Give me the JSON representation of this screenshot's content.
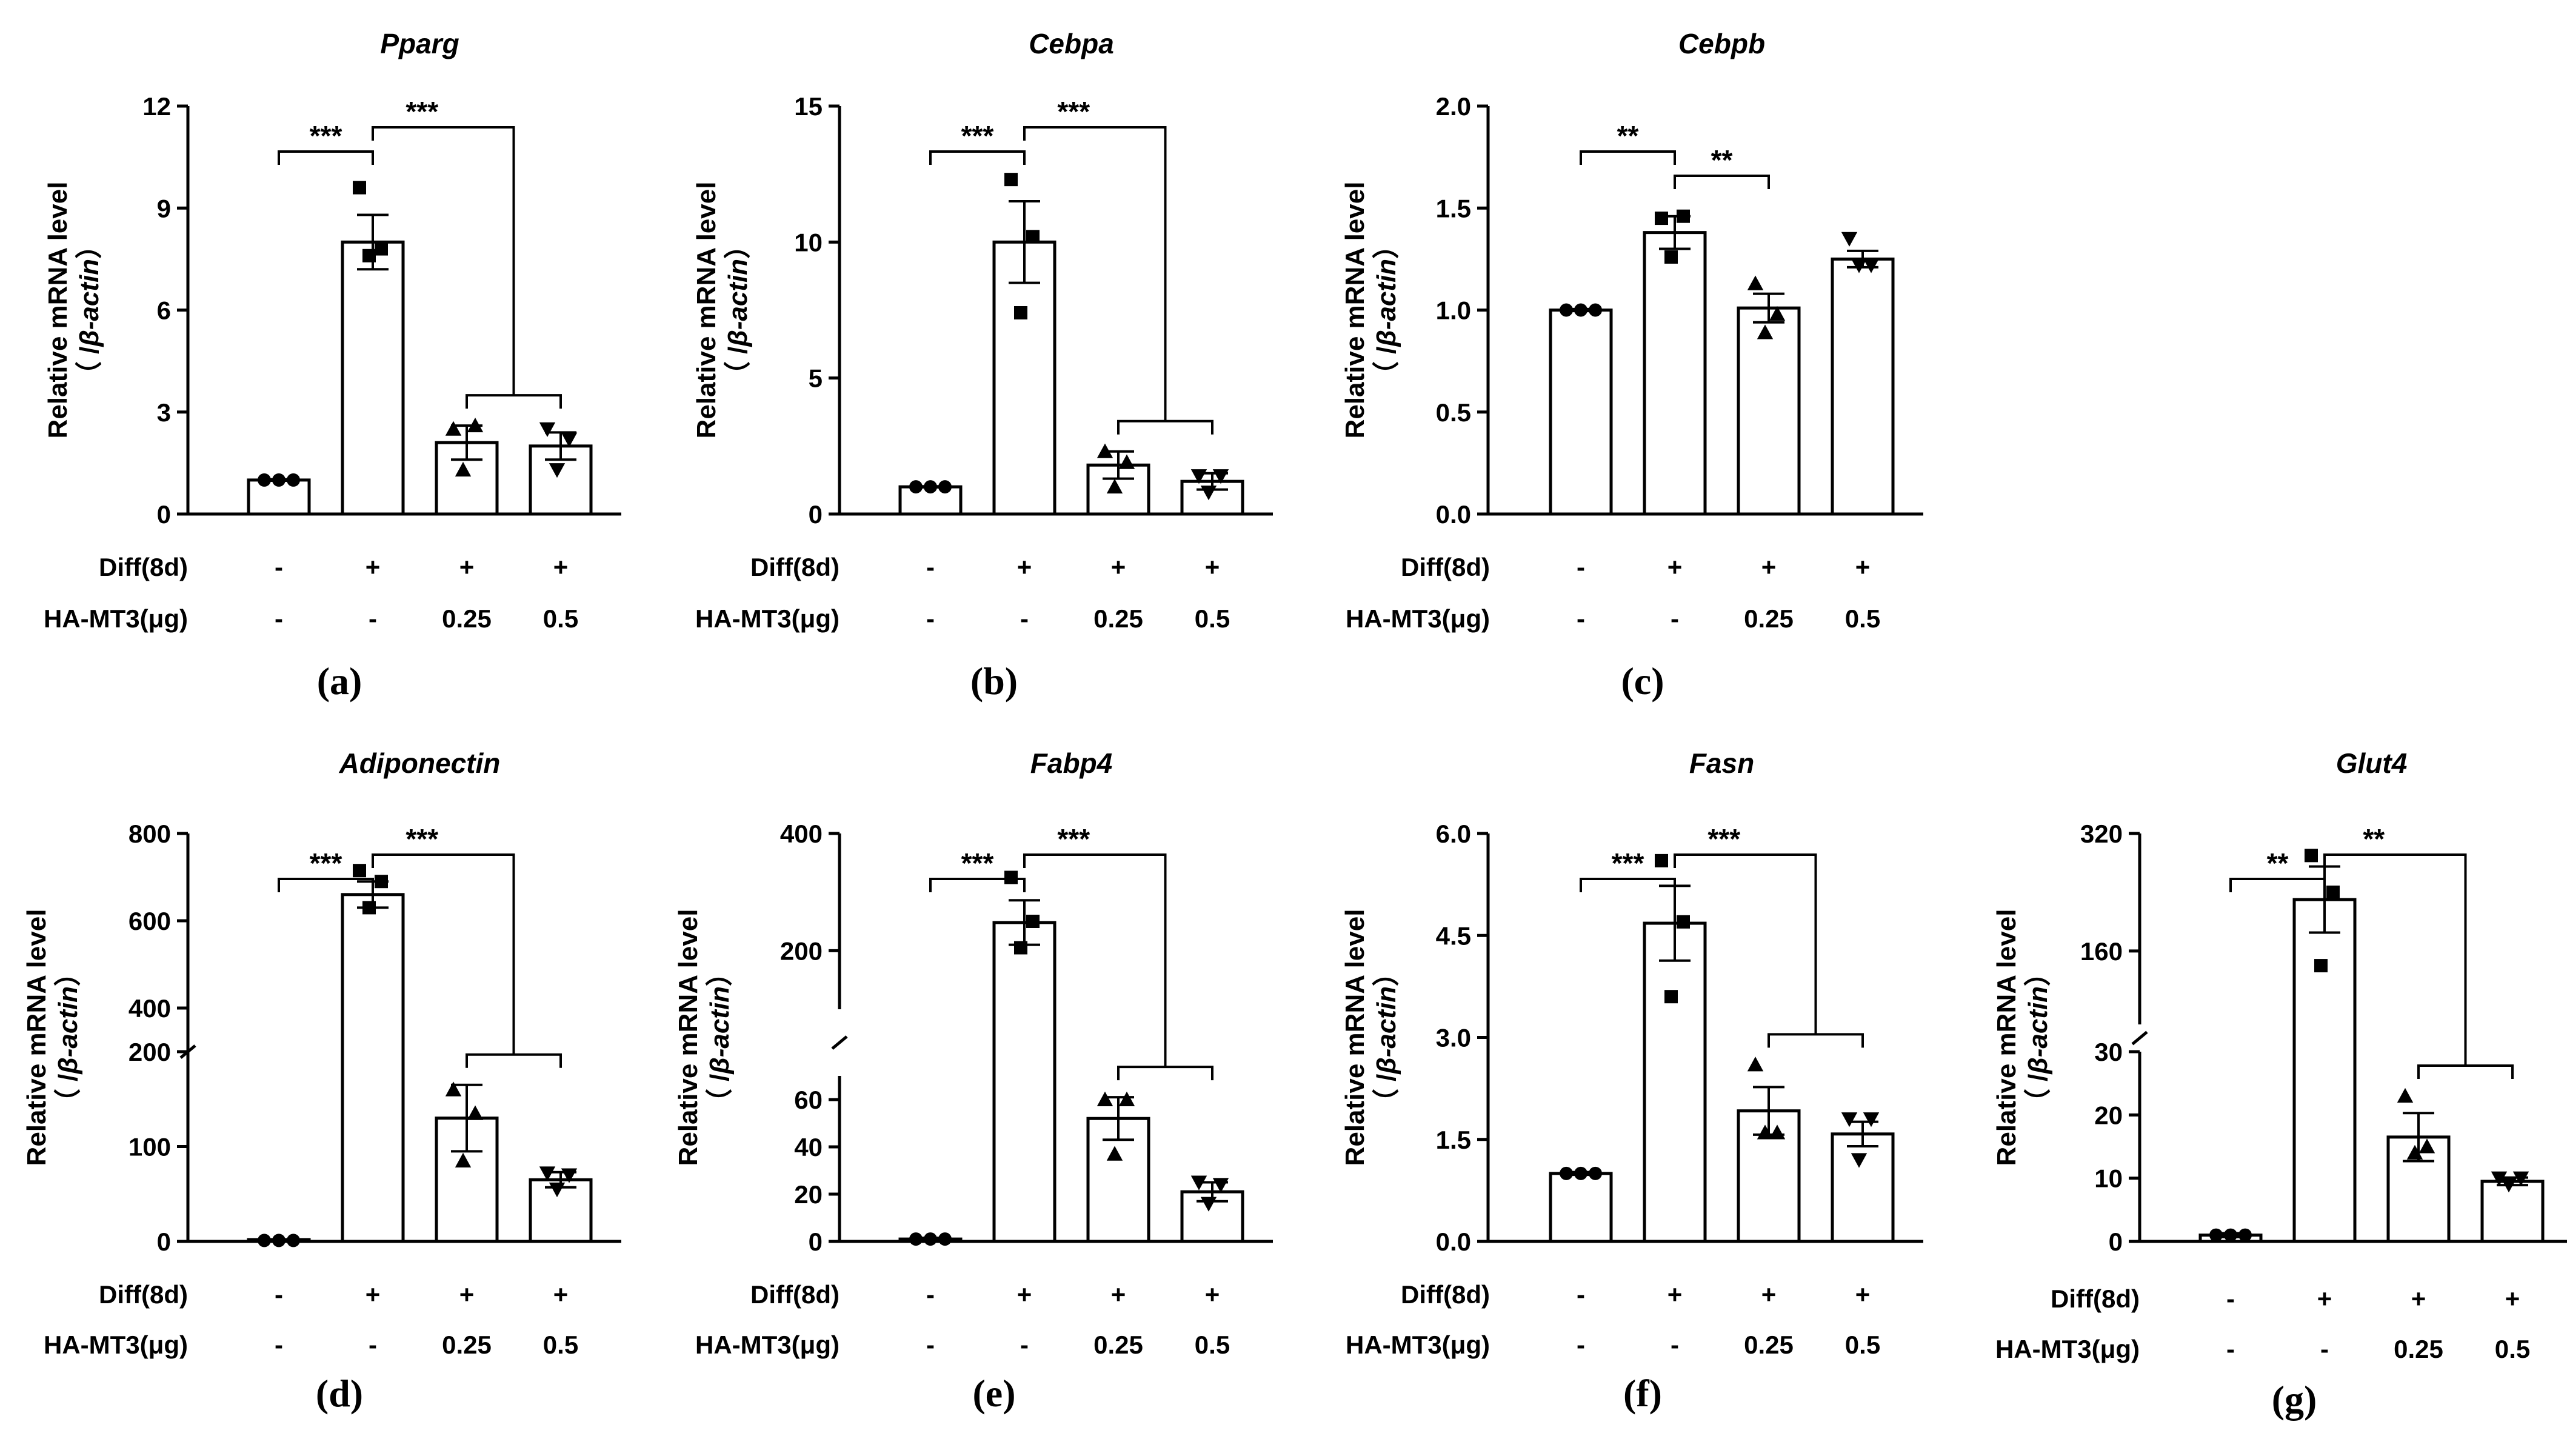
{
  "figure": {
    "ylabel_main": "Relative mRNA level",
    "ylabel_sub_prefix": "（ /",
    "ylabel_sub_gene": "β-actin",
    "ylabel_sub_suffix": "）",
    "row_labels": [
      "Diff(8d)",
      "HA-MT3(μg)"
    ],
    "diff_values": [
      "-",
      "+",
      "+",
      "+"
    ],
    "ha_values": [
      "-",
      "-",
      "0.25",
      "0.5"
    ],
    "colors": {
      "bar_fill": "#ffffff",
      "line": "#000000"
    }
  },
  "chart_data": [
    {
      "type": "bar",
      "panel": "(a)",
      "title": "Pparg",
      "ylim": [
        0,
        12
      ],
      "yticks": [
        "0",
        "3",
        "6",
        "9",
        "12"
      ],
      "categories": [
        "-/-",
        "+/-",
        "+/0.25",
        "+/0.5"
      ],
      "values": [
        1.0,
        8.0,
        2.1,
        2.0
      ],
      "errors": [
        0.02,
        0.8,
        0.5,
        0.4
      ],
      "points": [
        [
          1.0,
          1.0,
          1.0
        ],
        [
          9.6,
          7.8,
          7.6
        ],
        [
          2.5,
          2.6,
          1.3
        ],
        [
          2.5,
          2.2,
          1.3
        ]
      ],
      "markers": [
        "circle",
        "square",
        "triangle",
        "triangle-down"
      ],
      "significance": [
        {
          "label": "***",
          "from": 0,
          "to": 1
        },
        {
          "label": "***",
          "from": 1,
          "to": [
            2,
            3
          ]
        }
      ]
    },
    {
      "type": "bar",
      "panel": "(b)",
      "title": "Cebpa",
      "ylim": [
        0,
        15
      ],
      "yticks": [
        "0",
        "5",
        "10",
        "15"
      ],
      "categories": [
        "-/-",
        "+/-",
        "+/0.25",
        "+/0.5"
      ],
      "values": [
        1.0,
        10.0,
        1.8,
        1.2
      ],
      "errors": [
        0.02,
        1.5,
        0.5,
        0.3
      ],
      "points": [
        [
          1.0,
          1.0,
          1.0
        ],
        [
          12.3,
          10.2,
          7.4
        ],
        [
          2.3,
          1.9,
          1.0
        ],
        [
          1.4,
          1.4,
          0.8
        ]
      ],
      "markers": [
        "circle",
        "square",
        "triangle",
        "triangle-down"
      ],
      "significance": [
        {
          "label": "***",
          "from": 0,
          "to": 1
        },
        {
          "label": "***",
          "from": 1,
          "to": [
            2,
            3
          ]
        }
      ]
    },
    {
      "type": "bar",
      "panel": "(c)",
      "title": "Cebpb",
      "ylim": [
        0,
        2.0
      ],
      "yticks": [
        "0.0",
        "0.5",
        "1.0",
        "1.5",
        "2.0"
      ],
      "categories": [
        "-/-",
        "+/-",
        "+/0.25",
        "+/0.5"
      ],
      "values": [
        1.0,
        1.38,
        1.01,
        1.25
      ],
      "errors": [
        0.005,
        0.08,
        0.07,
        0.04
      ],
      "points": [
        [
          1.0,
          1.0,
          1.0
        ],
        [
          1.45,
          1.46,
          1.26
        ],
        [
          1.13,
          0.98,
          0.89
        ],
        [
          1.35,
          1.22,
          1.22
        ]
      ],
      "markers": [
        "circle",
        "square",
        "triangle",
        "triangle-down"
      ],
      "significance": [
        {
          "label": "**",
          "from": 0,
          "to": 1
        },
        {
          "label": "**",
          "from": 1,
          "to": 2
        }
      ]
    },
    {
      "type": "bar",
      "panel": "(d)",
      "title": "Adiponectin",
      "broken": true,
      "lower": {
        "ylim": [
          0,
          200
        ],
        "yticks": [
          "0",
          "100",
          "200"
        ]
      },
      "upper": {
        "ylim": [
          300,
          800
        ],
        "yticks": [
          "400",
          "600",
          "800"
        ]
      },
      "categories": [
        "-/-",
        "+/-",
        "+/0.25",
        "+/0.5"
      ],
      "values": [
        1,
        660,
        130,
        65
      ],
      "errors": [
        1,
        30,
        35,
        8
      ],
      "points": [
        [
          1,
          1,
          1
        ],
        [
          715,
          690,
          630
        ],
        [
          160,
          135,
          85
        ],
        [
          72,
          70,
          55
        ]
      ],
      "markers": [
        "circle",
        "square",
        "triangle",
        "triangle-down"
      ],
      "significance": [
        {
          "label": "***",
          "from": 0,
          "to": 1
        },
        {
          "label": "***",
          "from": 1,
          "to": [
            2,
            3
          ]
        }
      ]
    },
    {
      "type": "bar",
      "panel": "(e)",
      "title": "Fabp4",
      "broken": true,
      "lower": {
        "ylim": [
          0,
          70
        ],
        "yticks": [
          "0",
          "20",
          "40",
          "60"
        ]
      },
      "upper": {
        "ylim": [
          100,
          400
        ],
        "yticks": [
          "200",
          "400"
        ]
      },
      "categories": [
        "-/-",
        "+/-",
        "+/0.25",
        "+/0.5"
      ],
      "values": [
        1,
        248,
        52,
        21
      ],
      "errors": [
        0.5,
        38,
        9,
        4
      ],
      "points": [
        [
          1,
          1,
          1
        ],
        [
          325,
          250,
          205
        ],
        [
          60,
          60,
          37
        ],
        [
          25,
          24,
          16
        ]
      ],
      "markers": [
        "circle",
        "square",
        "triangle",
        "triangle-down"
      ],
      "significance": [
        {
          "label": "***",
          "from": 0,
          "to": 1
        },
        {
          "label": "***",
          "from": 1,
          "to": [
            2,
            3
          ]
        }
      ]
    },
    {
      "type": "bar",
      "panel": "(f)",
      "title": "Fasn",
      "ylim": [
        0,
        6.0
      ],
      "yticks": [
        "0.0",
        "1.5",
        "3.0",
        "4.5",
        "6.0"
      ],
      "categories": [
        "-/-",
        "+/-",
        "+/0.25",
        "+/0.5"
      ],
      "values": [
        1.0,
        4.68,
        1.92,
        1.58
      ],
      "errors": [
        0.02,
        0.55,
        0.35,
        0.18
      ],
      "points": [
        [
          1.0,
          1.0,
          1.0
        ],
        [
          5.6,
          4.7,
          3.6
        ],
        [
          2.6,
          1.6,
          1.6
        ],
        [
          1.8,
          1.8,
          1.2
        ]
      ],
      "markers": [
        "circle",
        "square",
        "triangle",
        "triangle-down"
      ],
      "significance": [
        {
          "label": "***",
          "from": 0,
          "to": 1
        },
        {
          "label": "***",
          "from": 1,
          "to": [
            2,
            3
          ]
        }
      ]
    },
    {
      "type": "bar",
      "panel": "(g)",
      "title": "Glut4",
      "broken": true,
      "lower": {
        "ylim": [
          0,
          30
        ],
        "yticks": [
          "0",
          "10",
          "20",
          "30"
        ]
      },
      "upper": {
        "ylim": [
          60,
          320
        ],
        "yticks": [
          "160",
          "320"
        ]
      },
      "categories": [
        "-/-",
        "+/-",
        "+/0.25",
        "+/0.5"
      ],
      "values": [
        1,
        230,
        16.5,
        9.5
      ],
      "errors": [
        0.3,
        45,
        3.8,
        0.6
      ],
      "points": [
        [
          1,
          1,
          1
        ],
        [
          290,
          240,
          140
        ],
        [
          23,
          15,
          14
        ],
        [
          10,
          10,
          9
        ]
      ],
      "markers": [
        "circle",
        "square",
        "triangle",
        "triangle-down"
      ],
      "significance": [
        {
          "label": "**",
          "from": 0,
          "to": 1
        },
        {
          "label": "**",
          "from": 1,
          "to": [
            2,
            3
          ]
        }
      ]
    }
  ]
}
